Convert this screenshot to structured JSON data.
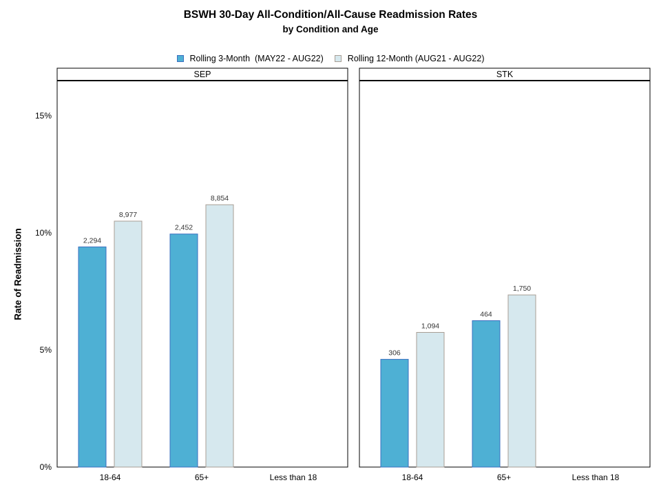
{
  "title": "BSWH 30-Day All-Condition/All-Cause Readmission Rates",
  "subtitle": "by Condition and Age",
  "legend": {
    "series1": "Rolling 3-Month  (MAY22 - AUG22)",
    "series2": "Rolling 12-Month (AUG21 - AUG22)"
  },
  "colors": {
    "series1_fill": "#4eb0d4",
    "series1_stroke": "#3a6fc0",
    "series2_fill": "#d6e8ee",
    "series2_stroke": "#a89e94"
  },
  "chart_data": {
    "type": "bar",
    "ylabel": "Rate of Readmission",
    "ylim": [
      0,
      16.5
    ],
    "yticks": [
      0,
      5,
      10,
      15
    ],
    "ytick_labels": [
      "0%",
      "5%",
      "10%",
      "15%"
    ],
    "categories": [
      "18-64",
      "65+",
      "Less than 18"
    ],
    "legend_position": "top",
    "panels": [
      {
        "name": "SEP",
        "series": [
          {
            "name": "Rolling 3-Month  (MAY22 - AUG22)",
            "values": [
              9.4,
              9.95,
              null
            ],
            "labels": [
              "2,294",
              "2,452",
              null
            ]
          },
          {
            "name": "Rolling 12-Month (AUG21 - AUG22)",
            "values": [
              10.5,
              11.2,
              null
            ],
            "labels": [
              "8,977",
              "8,854",
              null
            ]
          }
        ]
      },
      {
        "name": "STK",
        "series": [
          {
            "name": "Rolling 3-Month  (MAY22 - AUG22)",
            "values": [
              4.6,
              6.25,
              null
            ],
            "labels": [
              "306",
              "464",
              null
            ]
          },
          {
            "name": "Rolling 12-Month (AUG21 - AUG22)",
            "values": [
              5.75,
              7.35,
              null
            ],
            "labels": [
              "1,094",
              "1,750",
              null
            ]
          }
        ]
      }
    ]
  }
}
